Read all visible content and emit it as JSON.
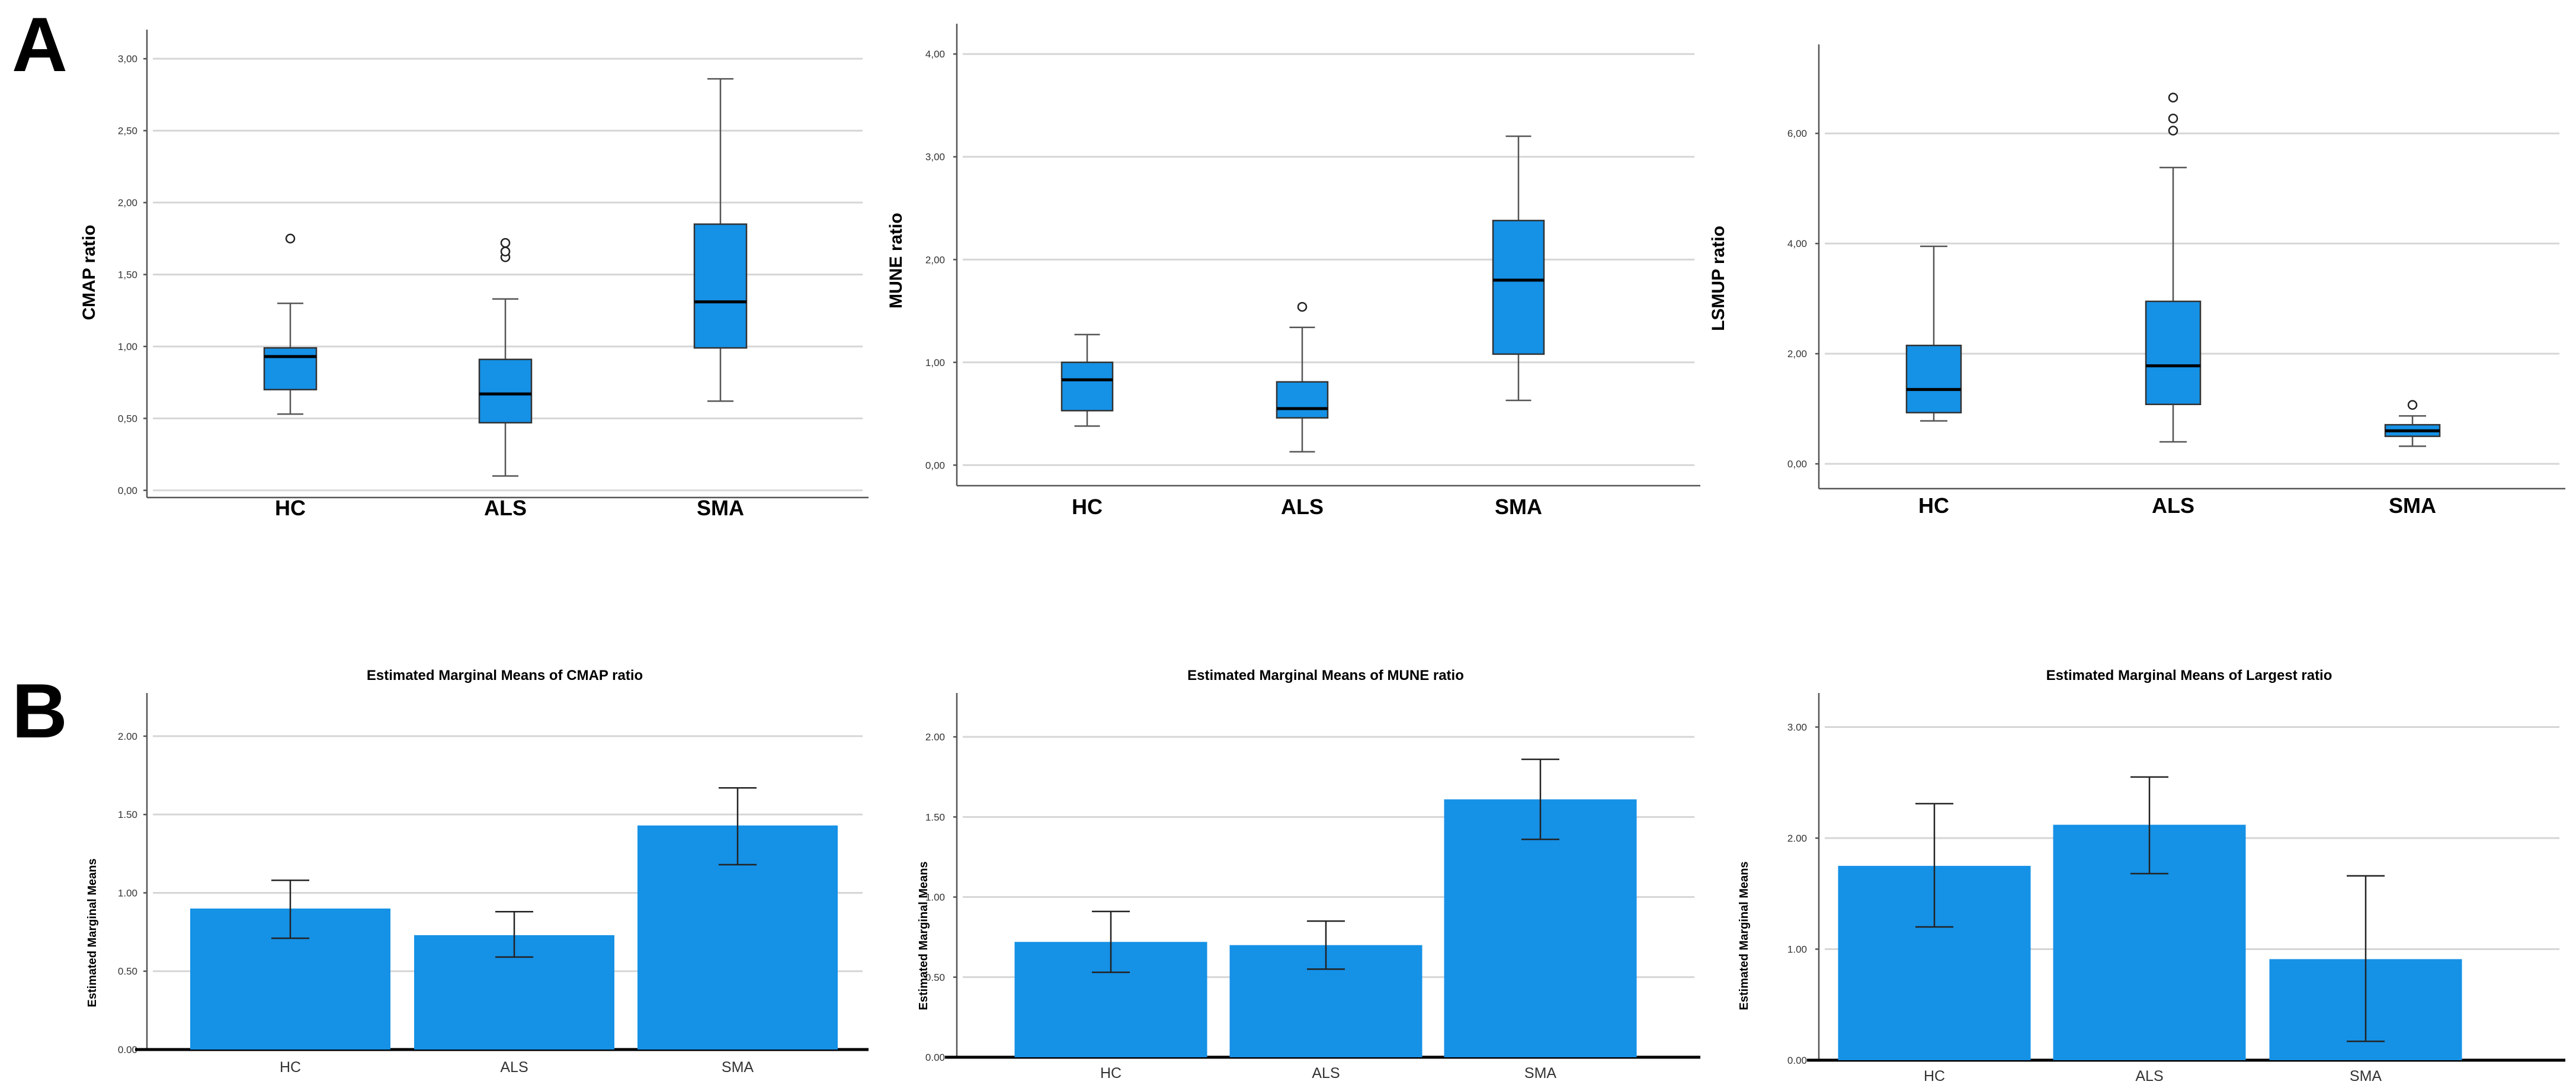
{
  "panels": {
    "a": "A",
    "b": "B"
  },
  "colors": {
    "fill": "#1591e6",
    "box_stroke": "#333333",
    "whisker": "#555555"
  },
  "chart_data": [
    {
      "id": "a1",
      "type": "boxplot",
      "title": "",
      "xlabel": "",
      "ylabel": "CMAP ratio",
      "categories": [
        "HC",
        "ALS",
        "SMA"
      ],
      "ylim": [
        -0.05,
        3.12
      ],
      "yticks": [
        0,
        0.5,
        1,
        1.5,
        2,
        2.5,
        3
      ],
      "yticklabels": [
        "0,00",
        "0,50",
        "1,00",
        "1,50",
        "2,00",
        "2,50",
        "3,00"
      ],
      "boxes": [
        {
          "min": 0.53,
          "q1": 0.7,
          "median": 0.93,
          "q3": 0.99,
          "max": 1.3,
          "outliers": [
            1.75
          ]
        },
        {
          "min": 0.1,
          "q1": 0.47,
          "median": 0.67,
          "q3": 0.91,
          "max": 1.33,
          "outliers": [
            1.62,
            1.66,
            1.72
          ]
        },
        {
          "min": 0.62,
          "q1": 0.99,
          "median": 1.31,
          "q3": 1.85,
          "max": 2.86,
          "outliers": []
        }
      ]
    },
    {
      "id": "a2",
      "type": "boxplot",
      "title": "",
      "xlabel": "",
      "ylabel": "MUNE ratio",
      "categories": [
        "HC",
        "ALS",
        "SMA"
      ],
      "ylim": [
        -0.2,
        4.18
      ],
      "yticks": [
        0,
        1,
        2,
        3,
        4
      ],
      "yticklabels": [
        "0,00",
        "1,00",
        "2,00",
        "3,00",
        "4,00"
      ],
      "boxes": [
        {
          "min": 0.38,
          "q1": 0.53,
          "median": 0.83,
          "q3": 1.0,
          "max": 1.27,
          "outliers": []
        },
        {
          "min": 0.13,
          "q1": 0.46,
          "median": 0.55,
          "q3": 0.81,
          "max": 1.34,
          "outliers": [
            1.54
          ]
        },
        {
          "min": 0.63,
          "q1": 1.08,
          "median": 1.8,
          "q3": 2.38,
          "max": 3.2,
          "outliers": []
        }
      ]
    },
    {
      "id": "a3",
      "type": "boxplot",
      "title": "",
      "xlabel": "",
      "ylabel": "LSMUP ratio",
      "categories": [
        "HC",
        "ALS",
        "SMA"
      ],
      "ylim": [
        -0.45,
        7.4
      ],
      "yticks": [
        0,
        2,
        4,
        6
      ],
      "yticklabels": [
        "0,00",
        "2,00",
        "4,00",
        "6,00"
      ],
      "boxes": [
        {
          "min": 0.78,
          "q1": 0.93,
          "median": 1.35,
          "q3": 2.15,
          "max": 3.95,
          "outliers": []
        },
        {
          "min": 0.4,
          "q1": 1.08,
          "median": 1.78,
          "q3": 2.95,
          "max": 5.38,
          "outliers": [
            6.05,
            6.27,
            6.65
          ]
        },
        {
          "min": 0.32,
          "q1": 0.5,
          "median": 0.6,
          "q3": 0.71,
          "max": 0.87,
          "outliers": [
            1.07
          ]
        }
      ]
    },
    {
      "id": "b1",
      "type": "bar",
      "title": "Estimated Marginal Means of CMAP ratio",
      "xlabel": "",
      "ylabel": "Estimated Marginal Means",
      "categories": [
        "HC",
        "ALS",
        "SMA"
      ],
      "values": [
        0.9,
        0.73,
        1.43
      ],
      "error_low": [
        0.71,
        0.59,
        1.18
      ],
      "error_high": [
        1.08,
        0.88,
        1.67
      ],
      "ylim": [
        0,
        2.2
      ],
      "yticks": [
        0,
        0.5,
        1,
        1.5,
        2
      ],
      "yticklabels": [
        "0.00",
        "0.50",
        "1.00",
        "1.50",
        "2.00"
      ]
    },
    {
      "id": "b2",
      "type": "bar",
      "title": "Estimated Marginal Means of MUNE ratio",
      "xlabel": "",
      "ylabel": "Estimated Marginal Means",
      "categories": [
        "HC",
        "ALS",
        "SMA"
      ],
      "values": [
        0.72,
        0.7,
        1.61
      ],
      "error_low": [
        0.53,
        0.55,
        1.36
      ],
      "error_high": [
        0.91,
        0.85,
        1.86
      ],
      "ylim": [
        0,
        2.2
      ],
      "yticks": [
        0,
        0.5,
        1,
        1.5,
        2
      ],
      "yticklabels": [
        "0.00",
        "0.50",
        "1.00",
        "1.50",
        "2.00"
      ]
    },
    {
      "id": "b3",
      "type": "bar",
      "title": "Estimated Marginal Means of Largest ratio",
      "xlabel": "",
      "ylabel": "Estimated Marginal Means",
      "categories": [
        "HC",
        "ALS",
        "SMA"
      ],
      "values": [
        1.75,
        2.12,
        0.91
      ],
      "error_low": [
        1.2,
        1.68,
        0.17
      ],
      "error_high": [
        2.31,
        2.55,
        1.66
      ],
      "ylim": [
        0,
        3.2
      ],
      "yticks": [
        0,
        1,
        2,
        3
      ],
      "yticklabels": [
        "0.00",
        "1.00",
        "2.00",
        "3.00"
      ]
    }
  ]
}
